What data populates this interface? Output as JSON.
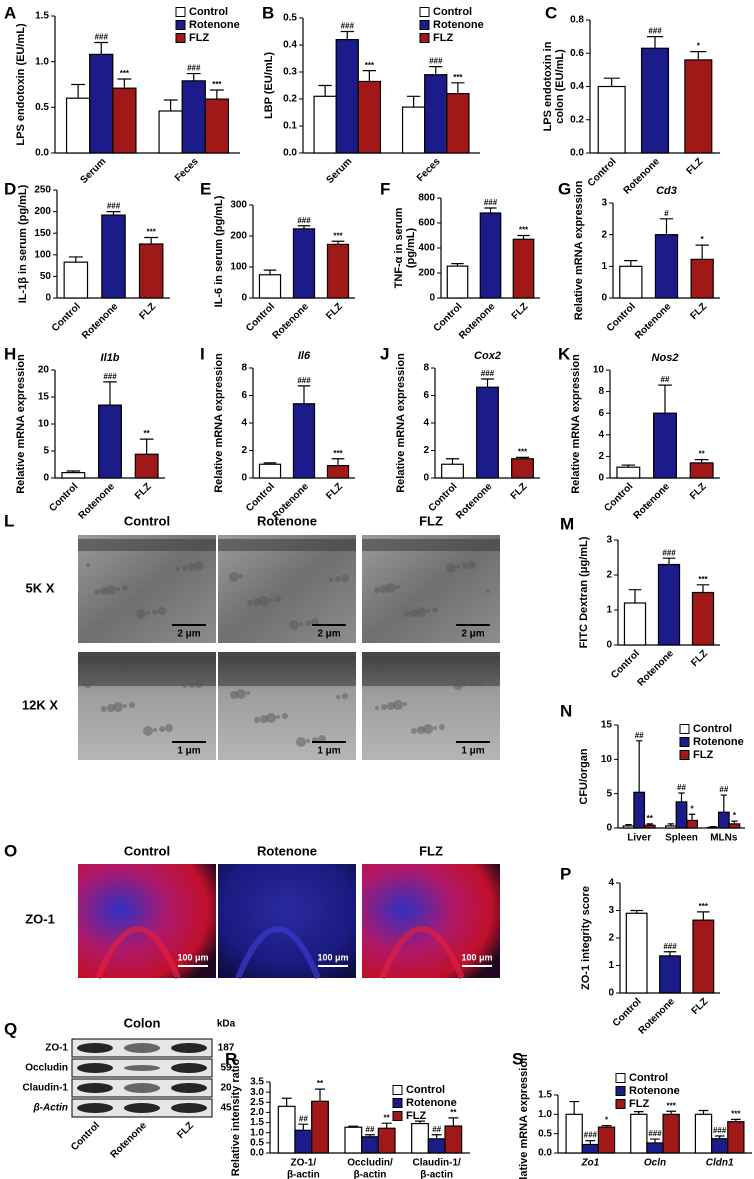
{
  "chart_data": [
    {
      "type": "bar",
      "panel": "A",
      "ylabel": "LPS endotoxin (EU/mL)",
      "categories": [
        "Serum",
        "Feces"
      ],
      "ylim": [
        0,
        1.5
      ],
      "yticks": [
        {
          "value": 0,
          "label": "0.0"
        },
        0.5,
        {
          "value": 1,
          "label": "1.0"
        },
        1.5
      ],
      "series": [
        {
          "name": "Control",
          "color": "#ffffff",
          "values": [
            0.6,
            0.46
          ],
          "errors": [
            0.15,
            0.12
          ],
          "annotations": [
            null,
            null
          ]
        },
        {
          "name": "Rotenone",
          "color": "#1b1b8a",
          "values": [
            1.08,
            0.79
          ],
          "errors": [
            0.13,
            0.08
          ],
          "annotations": [
            "###",
            "###"
          ]
        },
        {
          "name": "FLZ",
          "color": "#a01818",
          "values": [
            0.71,
            0.59
          ],
          "errors": [
            0.1,
            0.1
          ],
          "annotations": [
            "***",
            "***"
          ]
        }
      ]
    },
    {
      "type": "bar",
      "panel": "B",
      "ylabel": "LBP (EU/mL)",
      "categories": [
        "Serum",
        "Feces"
      ],
      "ylim": [
        0,
        0.5
      ],
      "yticks": [
        {
          "value": 0,
          "label": "0.0"
        },
        0.1,
        0.2,
        0.3,
        0.4,
        0.5
      ],
      "series": [
        {
          "name": "Control",
          "color": "#ffffff",
          "values": [
            0.21,
            0.17
          ],
          "errors": [
            0.04,
            0.04
          ],
          "annotations": [
            null,
            null
          ]
        },
        {
          "name": "Rotenone",
          "color": "#1b1b8a",
          "values": [
            0.42,
            0.29
          ],
          "errors": [
            0.03,
            0.03
          ],
          "annotations": [
            "###",
            "###"
          ]
        },
        {
          "name": "FLZ",
          "color": "#a01818",
          "values": [
            0.265,
            0.22
          ],
          "errors": [
            0.04,
            0.04
          ],
          "annotations": [
            "***",
            "***"
          ]
        }
      ]
    },
    {
      "type": "bar",
      "panel": "C",
      "ylabel": [
        "LPS endotoxin in",
        "colon (EU/mL)"
      ],
      "categories": [
        "Control",
        "Rotenone",
        "FLZ"
      ],
      "values": [
        0.4,
        0.63,
        0.56
      ],
      "errors": [
        0.05,
        0.07,
        0.05
      ],
      "colors": [
        "#ffffff",
        "#1b1b8a",
        "#a01818"
      ],
      "annotations": [
        null,
        "###",
        "*"
      ],
      "ylim": [
        0,
        0.8
      ],
      "yticks": [
        {
          "value": 0,
          "label": "0.0"
        },
        0.2,
        0.4,
        0.6,
        0.8
      ]
    },
    {
      "type": "bar",
      "panel": "D",
      "ylabel": "IL-1β in serum (pg/mL)",
      "categories": [
        "Control",
        "Rotenone",
        "FLZ"
      ],
      "values": [
        83,
        192,
        125
      ],
      "errors": [
        12,
        8,
        15
      ],
      "colors": [
        "#ffffff",
        "#1b1b8a",
        "#a01818"
      ],
      "annotations": [
        null,
        "###",
        "***"
      ],
      "ylim": [
        0,
        250
      ],
      "yticks": [
        0,
        50,
        100,
        150,
        200,
        250
      ]
    },
    {
      "type": "bar",
      "panel": "E",
      "ylabel": "IL-6 in serum (pg/mL)",
      "categories": [
        "Control",
        "Rotenone",
        "FLZ"
      ],
      "values": [
        75,
        223,
        173
      ],
      "errors": [
        15,
        10,
        10
      ],
      "colors": [
        "#ffffff",
        "#1b1b8a",
        "#a01818"
      ],
      "annotations": [
        null,
        "###",
        "***"
      ],
      "ylim": [
        0,
        300
      ],
      "yticks": [
        0,
        100,
        200,
        300
      ]
    },
    {
      "type": "bar",
      "panel": "F",
      "ylabel": [
        "TNF-α in serum",
        "(pg/mL)"
      ],
      "categories": [
        "Control",
        "Rotenone",
        "FLZ"
      ],
      "values": [
        255,
        680,
        470
      ],
      "errors": [
        20,
        40,
        30
      ],
      "colors": [
        "#ffffff",
        "#1b1b8a",
        "#a01818"
      ],
      "annotations": [
        null,
        "###",
        "***"
      ],
      "ylim": [
        0,
        800
      ],
      "yticks": [
        0,
        200,
        400,
        600,
        800
      ]
    },
    {
      "type": "bar",
      "panel": "G",
      "title": "Cd3",
      "ylabel": "Relative mRNA expression",
      "categories": [
        "Control",
        "Rotenone",
        "FLZ"
      ],
      "values": [
        1.0,
        2.0,
        1.22
      ],
      "errors": [
        0.18,
        0.5,
        0.45
      ],
      "colors": [
        "#ffffff",
        "#1b1b8a",
        "#a01818"
      ],
      "annotations": [
        null,
        "#",
        "*"
      ],
      "ylim": [
        0,
        3
      ],
      "yticks": [
        0,
        1,
        2,
        3
      ]
    },
    {
      "type": "bar",
      "panel": "H",
      "title": "Il1b",
      "ylabel": "Relative mRNA expression",
      "categories": [
        "Control",
        "Rotenone",
        "FLZ"
      ],
      "values": [
        1,
        13.5,
        4.4
      ],
      "errors": [
        0.3,
        4.3,
        2.8
      ],
      "colors": [
        "#ffffff",
        "#1b1b8a",
        "#a01818"
      ],
      "annotations": [
        null,
        "###",
        "**"
      ],
      "ylim": [
        0,
        20
      ],
      "yticks": [
        0,
        5,
        10,
        15,
        20
      ]
    },
    {
      "type": "bar",
      "panel": "I",
      "title": "Il6",
      "ylabel": "Relative mRNA expression",
      "categories": [
        "Control",
        "Rotenone",
        "FLZ"
      ],
      "values": [
        1,
        5.4,
        0.9
      ],
      "errors": [
        0.1,
        1.3,
        0.5
      ],
      "colors": [
        "#ffffff",
        "#1b1b8a",
        "#a01818"
      ],
      "annotations": [
        null,
        "###",
        "***"
      ],
      "ylim": [
        0,
        8
      ],
      "yticks": [
        0,
        2,
        4,
        6,
        8
      ]
    },
    {
      "type": "bar",
      "panel": "J",
      "title": "Cox2",
      "ylabel": "Relative mRNA expression",
      "categories": [
        "Control",
        "Rotenone",
        "FLZ"
      ],
      "values": [
        1,
        6.6,
        1.4
      ],
      "errors": [
        0.4,
        0.6,
        0.1
      ],
      "colors": [
        "#ffffff",
        "#1b1b8a",
        "#a01818"
      ],
      "annotations": [
        null,
        "###",
        "***"
      ],
      "ylim": [
        0,
        8
      ],
      "yticks": [
        0,
        2,
        4,
        6,
        8
      ]
    },
    {
      "type": "bar",
      "panel": "K",
      "title": "Nos2",
      "ylabel": "Relative mRNA expression",
      "categories": [
        "Control",
        "Rotenone",
        "FLZ"
      ],
      "values": [
        1,
        6,
        1.4
      ],
      "errors": [
        0.2,
        2.6,
        0.3
      ],
      "colors": [
        "#ffffff",
        "#1b1b8a",
        "#a01818"
      ],
      "annotations": [
        null,
        "##",
        "**"
      ],
      "ylim": [
        0,
        10
      ],
      "yticks": [
        0,
        2,
        4,
        6,
        8,
        10
      ]
    },
    {
      "type": "bar",
      "panel": "M",
      "ylabel": "FITC Dextran (μg/mL)",
      "categories": [
        "Control",
        "Rotenone",
        "FLZ"
      ],
      "values": [
        1.2,
        2.3,
        1.5
      ],
      "errors": [
        0.38,
        0.18,
        0.22
      ],
      "colors": [
        "#ffffff",
        "#1b1b8a",
        "#a01818"
      ],
      "annotations": [
        null,
        "###",
        "***"
      ],
      "ylim": [
        0,
        3
      ],
      "yticks": [
        0,
        1,
        2,
        3
      ]
    },
    {
      "type": "bar",
      "panel": "N",
      "ylabel": "CFU/organ",
      "categories": [
        "Liver",
        "Spleen",
        "MLNs"
      ],
      "ylim": [
        0,
        15
      ],
      "yticks": [
        0,
        5,
        10,
        15
      ],
      "series": [
        {
          "name": "Control",
          "color": "#ffffff",
          "values": [
            0.3,
            0.3,
            0.1
          ],
          "errors": [
            0.2,
            0.3,
            0.1
          ],
          "annotations": [
            null,
            null,
            null
          ]
        },
        {
          "name": "Rotenone",
          "color": "#1b1b8a",
          "values": [
            5.2,
            3.8,
            2.3
          ],
          "errors": [
            7.5,
            1.3,
            2.5
          ],
          "annotations": [
            "##",
            "##",
            "##"
          ]
        },
        {
          "name": "FLZ",
          "color": "#a01818",
          "values": [
            0.4,
            1.1,
            0.6
          ],
          "errors": [
            0.2,
            0.9,
            0.4
          ],
          "annotations": [
            "**",
            "*",
            "*"
          ]
        }
      ]
    },
    {
      "type": "bar",
      "panel": "P",
      "ylabel": "ZO-1 integrity score",
      "categories": [
        "Control",
        "Rotenone",
        "FLZ"
      ],
      "values": [
        2.9,
        1.35,
        2.65
      ],
      "errors": [
        0.1,
        0.15,
        0.3
      ],
      "colors": [
        "#ffffff",
        "#1b1b8a",
        "#a01818"
      ],
      "annotations": [
        null,
        "###",
        "***"
      ],
      "ylim": [
        0,
        4
      ],
      "yticks": [
        0,
        1,
        2,
        3,
        4
      ]
    },
    {
      "type": "bar",
      "panel": "R",
      "ylabel": "Relative intensity ratio",
      "categories": [
        [
          "ZO-1/",
          "β-actin"
        ],
        [
          "Occludin/",
          "β-actin"
        ],
        [
          "Claudin-1/",
          "β-actin"
        ]
      ],
      "ylim": [
        0,
        3.5
      ],
      "yticks": [
        {
          "value": 0,
          "label": "0.0"
        },
        0.5,
        {
          "value": 1,
          "label": "1.0"
        },
        1.5,
        {
          "value": 2,
          "label": "2.0"
        },
        2.5,
        {
          "value": 3,
          "label": "3.0"
        },
        3.5
      ],
      "series": [
        {
          "name": "Control",
          "color": "#ffffff",
          "values": [
            2.3,
            1.27,
            1.45
          ],
          "errors": [
            0.4,
            0.05,
            0.12
          ],
          "annotations": [
            null,
            null,
            null
          ]
        },
        {
          "name": "Rotenone",
          "color": "#1b1b8a",
          "values": [
            1.12,
            0.8,
            0.7
          ],
          "errors": [
            0.3,
            0.1,
            0.2
          ],
          "annotations": [
            "##",
            "##",
            "##"
          ]
        },
        {
          "name": "FLZ",
          "color": "#a01818",
          "values": [
            2.55,
            1.22,
            1.33
          ],
          "errors": [
            0.6,
            0.25,
            0.4
          ],
          "annotations": [
            "**",
            "**",
            "**"
          ]
        }
      ]
    },
    {
      "type": "bar",
      "panel": "S",
      "ylabel": "Relative mRNA expression",
      "categories": [
        "Zo1",
        "Ocln",
        "Cldn1"
      ],
      "ylim": [
        0,
        1.5
      ],
      "yticks": [
        {
          "value": 0,
          "label": "0.0"
        },
        0.5,
        {
          "value": 1,
          "label": "1.0"
        },
        1.5
      ],
      "series": [
        {
          "name": "Control",
          "color": "#ffffff",
          "values": [
            1,
            1,
            1
          ],
          "errors": [
            0.33,
            0.07,
            0.1
          ],
          "annotations": [
            null,
            null,
            null
          ]
        },
        {
          "name": "Rotenone",
          "color": "#1b1b8a",
          "values": [
            0.22,
            0.26,
            0.37
          ],
          "errors": [
            0.1,
            0.1,
            0.07
          ],
          "annotations": [
            "###",
            "###",
            "###"
          ]
        },
        {
          "name": "FLZ",
          "color": "#a01818",
          "values": [
            0.67,
            1.0,
            0.81
          ],
          "errors": [
            0.04,
            0.08,
            0.06
          ],
          "annotations": [
            "*",
            "***",
            "***"
          ]
        }
      ]
    }
  ],
  "em": {
    "panel": "L",
    "columns": [
      "Control",
      "Rotenone",
      "FLZ"
    ],
    "rows": [
      "5K X",
      "12K X"
    ],
    "scale_bars": [
      "2 μm",
      "2 μm",
      "2 μm",
      "1 μm",
      "1 μm",
      "1 μm"
    ]
  },
  "if": {
    "panel": "O",
    "columns": [
      "Control",
      "Rotenone",
      "FLZ"
    ],
    "row": "ZO-1",
    "scale_bars": [
      "100 μm",
      "100 μm",
      "100 μm"
    ]
  },
  "blot": {
    "panel": "Q",
    "title": "Colon",
    "unit": "kDa",
    "proteins": [
      "ZO-1",
      "Occludin",
      "Claudin-1",
      "β-Actin"
    ],
    "kda": [
      "187",
      "59",
      "20",
      "45"
    ],
    "lanes": [
      "Control",
      "Rotenone",
      "FLZ"
    ]
  }
}
